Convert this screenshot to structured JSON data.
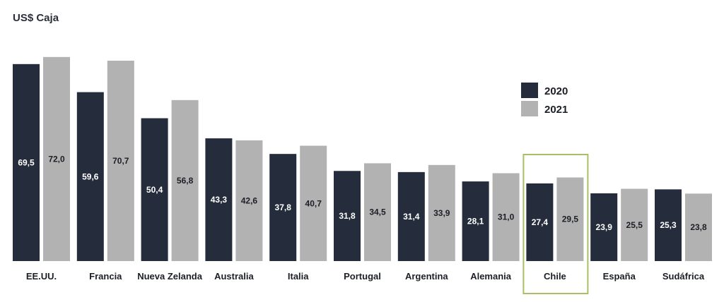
{
  "chart_data": {
    "type": "bar",
    "title": "US$ Caja",
    "categories": [
      "EE.UU.",
      "Francia",
      "Nueva Zelanda",
      "Australia",
      "Italia",
      "Portugal",
      "Argentina",
      "Alemania",
      "Chile",
      "España",
      "Sudáfrica"
    ],
    "series": [
      {
        "name": "2020",
        "color": "#252d3c",
        "values": [
          69.5,
          59.6,
          50.4,
          43.3,
          37.8,
          31.8,
          31.4,
          28.1,
          27.4,
          23.9,
          25.3
        ],
        "labels": [
          "69,5",
          "59,6",
          "50,4",
          "43,3",
          "37,8",
          "31,8",
          "31,4",
          "28,1",
          "27,4",
          "23,9",
          "25,3"
        ]
      },
      {
        "name": "2021",
        "color": "#b2b2b2",
        "values": [
          72.0,
          70.7,
          56.8,
          42.6,
          40.7,
          34.5,
          33.9,
          31.0,
          29.5,
          25.5,
          23.8
        ],
        "labels": [
          "72,0",
          "70,7",
          "56,8",
          "42,6",
          "40,7",
          "34,5",
          "33,9",
          "31,0",
          "29,5",
          "25,5",
          "23,8"
        ]
      }
    ],
    "highlight": {
      "category": "Chile",
      "color": "#a8c063"
    },
    "legend": {
      "position": "right"
    },
    "grid": false,
    "ylim": [
      0,
      75
    ]
  }
}
